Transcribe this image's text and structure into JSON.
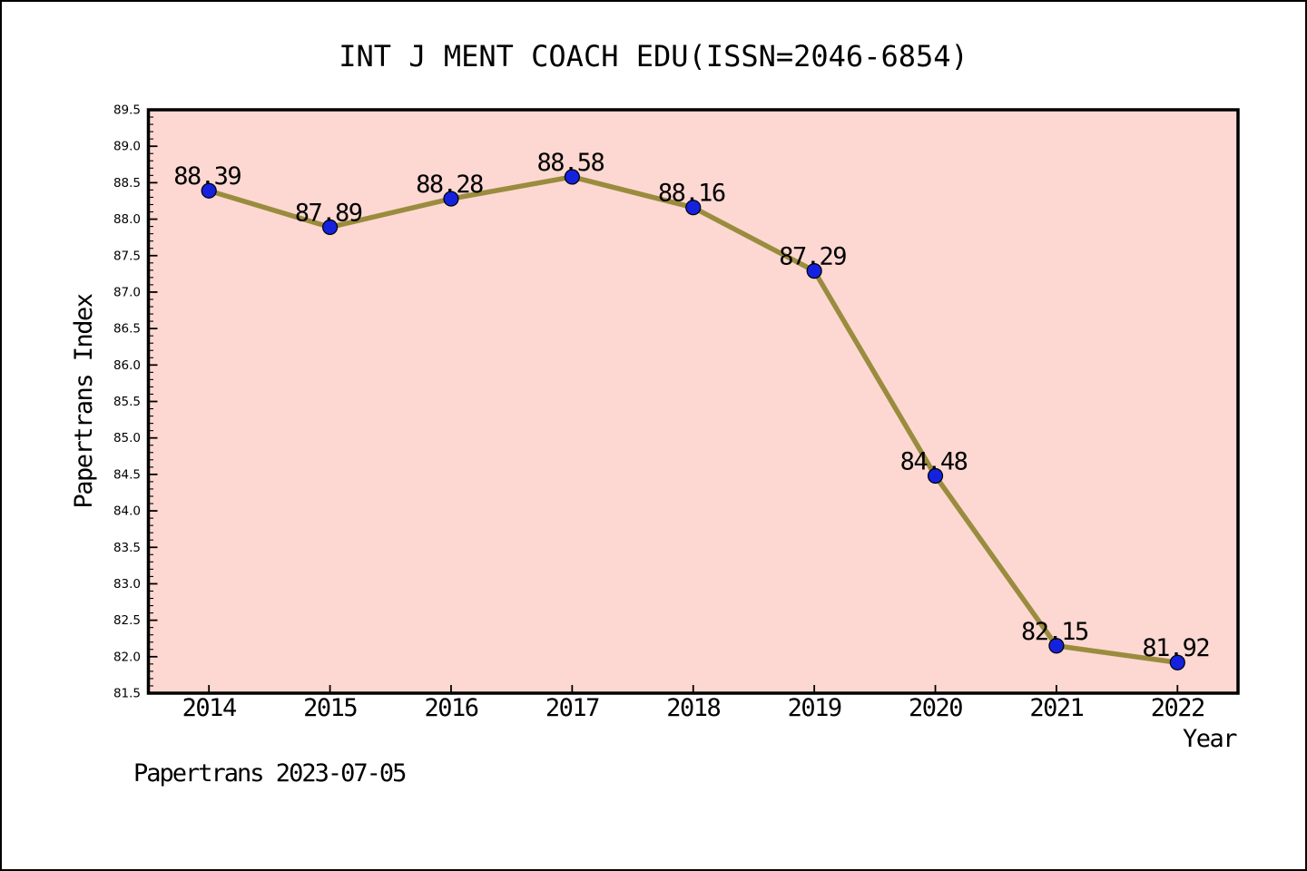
{
  "title": "INT J MENT COACH EDU(ISSN=2046-6854)",
  "footer": "Papertrans 2023-07-05",
  "chart_data": {
    "type": "line",
    "title": "INT J MENT COACH EDU(ISSN=2046-6854)",
    "xlabel": "Year",
    "ylabel": "Papertrans Index",
    "x": [
      2014,
      2015,
      2016,
      2017,
      2018,
      2019,
      2020,
      2021,
      2022
    ],
    "series": [
      {
        "name": "Papertrans Index",
        "values": [
          88.39,
          87.89,
          88.28,
          88.58,
          88.16,
          87.29,
          84.48,
          82.15,
          81.92
        ]
      }
    ],
    "point_labels": [
      "88.39",
      "87.89",
      "88.28",
      "88.58",
      "88.16",
      "87.29",
      "84.48",
      "82.15",
      "81.92"
    ],
    "xticks": [
      "2014",
      "2015",
      "2016",
      "2017",
      "2018",
      "2019",
      "2020",
      "2021",
      "2022"
    ],
    "yticks": [
      "81.5",
      "82.0",
      "82.5",
      "83.0",
      "83.5",
      "84.0",
      "84.5",
      "85.0",
      "85.5",
      "86.0",
      "86.5",
      "87.0",
      "87.5",
      "88.0",
      "88.5",
      "89.0",
      "89.5"
    ],
    "xlim": [
      2013.5,
      2022.5
    ],
    "ylim": [
      81.5,
      89.5
    ],
    "minor_tick_step": 0.1,
    "grid": false,
    "legend": "none",
    "marker": "circle",
    "colors": {
      "line": "#9a8c3e",
      "marker_fill": "#1522dd",
      "marker_edge": "#000000",
      "plot_background": "#fdd8d2",
      "figure_background": "#ffffff",
      "axis": "#000000",
      "text": "#000000"
    }
  }
}
